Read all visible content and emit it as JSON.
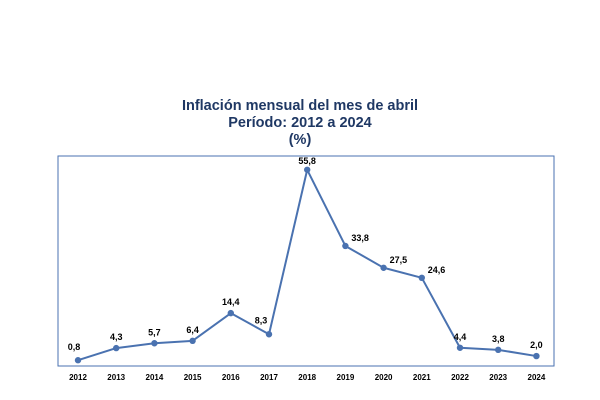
{
  "chart_data": {
    "type": "line",
    "title_lines": [
      "Inflación mensual del mes de abril",
      "Período: 2012 a 2024",
      "(%)"
    ],
    "categories": [
      "2012",
      "2013",
      "2014",
      "2015",
      "2016",
      "2017",
      "2018",
      "2019",
      "2020",
      "2021",
      "2022",
      "2023",
      "2024"
    ],
    "values": [
      0.8,
      4.3,
      5.7,
      6.4,
      14.4,
      8.3,
      55.8,
      33.8,
      27.5,
      24.6,
      4.4,
      3.8,
      2.0
    ],
    "data_labels": [
      "0,8",
      "4,3",
      "5,7",
      "6,4",
      "14,4",
      "8,3",
      "55,8",
      "33,8",
      "27,5",
      "24,6",
      "4,4",
      "3,8",
      "2,0"
    ],
    "xlabel": "",
    "ylabel": "",
    "ylim": [
      0,
      58
    ],
    "grid": false,
    "legend": "none",
    "colors": {
      "line": "#4a72b0",
      "marker": "#4a72b0",
      "frame": "#4a72b0",
      "title": "#1f3864"
    }
  }
}
